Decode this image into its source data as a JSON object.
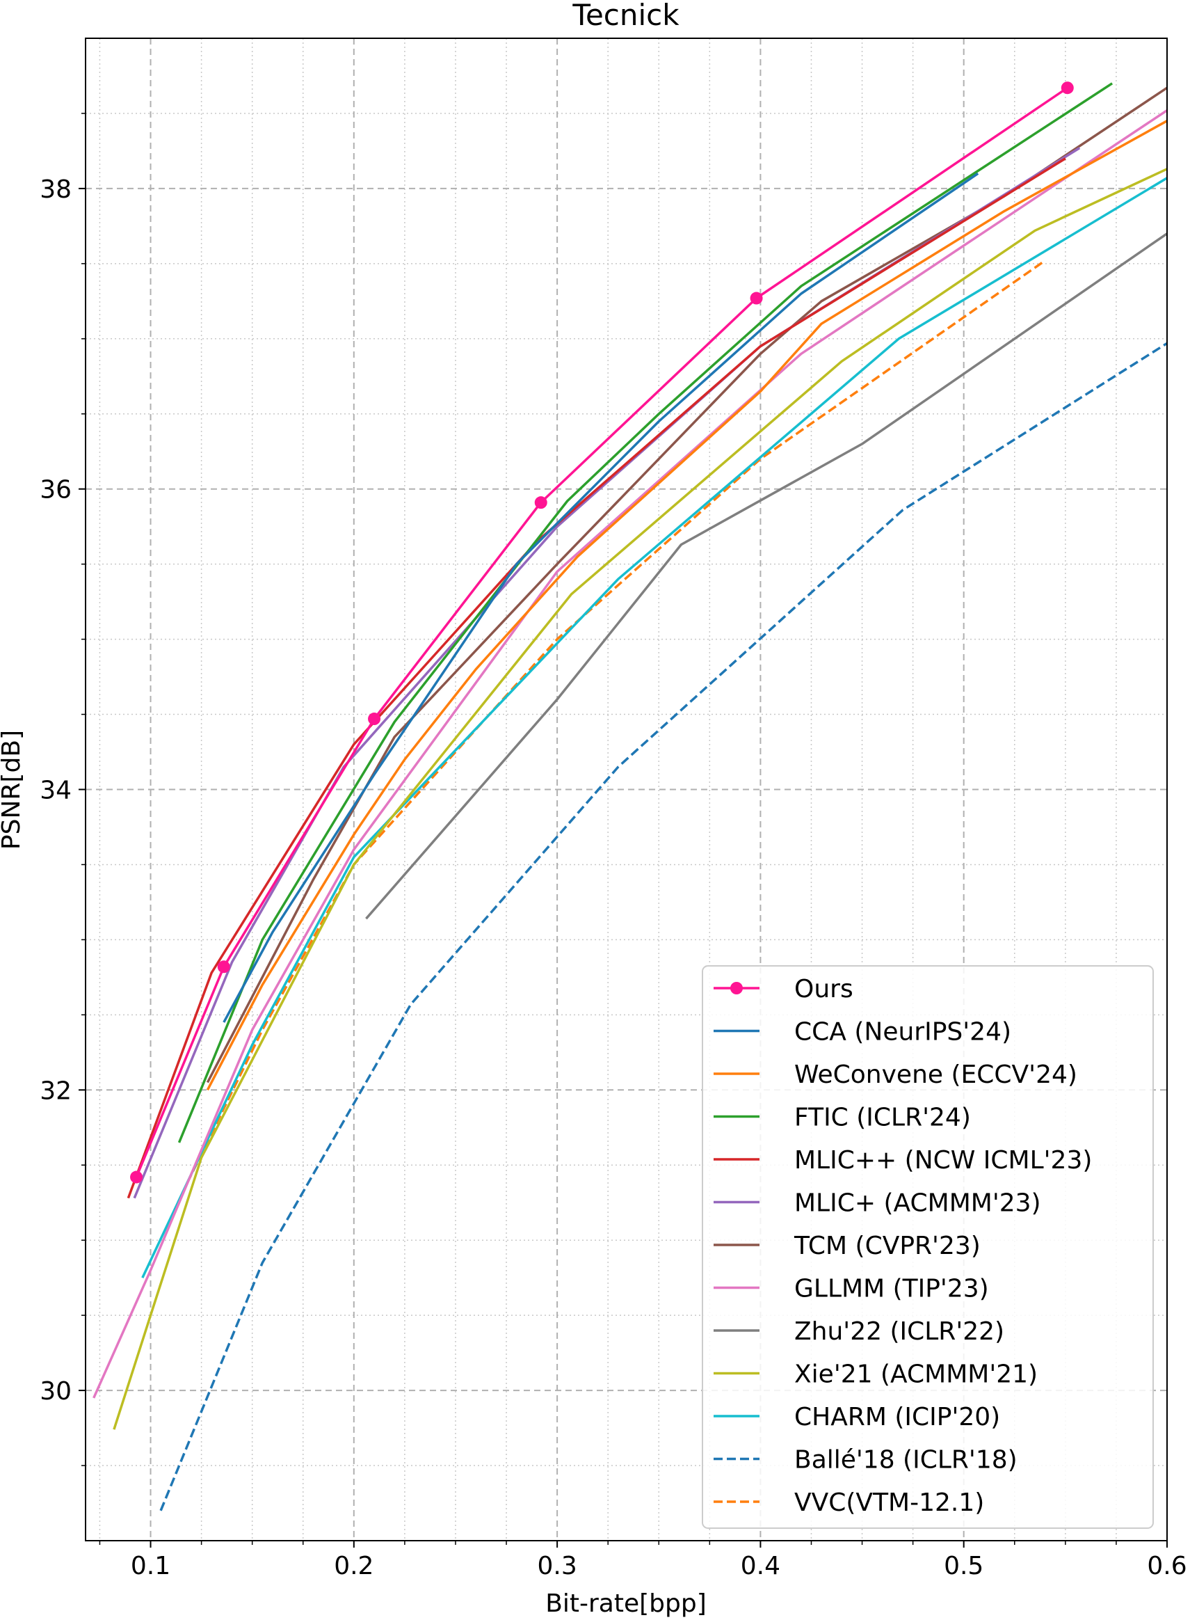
{
  "chart_data": {
    "type": "line",
    "title": "Tecnick",
    "xlabel": "Bit-rate[bpp]",
    "ylabel": "PSNR[dB]",
    "xlim": [
      0.068,
      0.6
    ],
    "ylim": [
      29.0,
      39.0
    ],
    "xticks": [
      {
        "value": 0.1,
        "label": "0.1"
      },
      {
        "value": 0.2,
        "label": "0.2"
      },
      {
        "value": 0.3,
        "label": "0.3"
      },
      {
        "value": 0.4,
        "label": "0.4"
      },
      {
        "value": 0.5,
        "label": "0.5"
      },
      {
        "value": 0.6,
        "label": "0.6"
      }
    ],
    "yticks": [
      {
        "value": 30,
        "label": "30"
      },
      {
        "value": 32,
        "label": "32"
      },
      {
        "value": 34,
        "label": "34"
      },
      {
        "value": 36,
        "label": "36"
      },
      {
        "value": 38,
        "label": "38"
      }
    ],
    "x_minor_ticks": [
      0.075,
      0.125,
      0.15,
      0.175,
      0.225,
      0.25,
      0.275,
      0.325,
      0.35,
      0.375,
      0.425,
      0.45,
      0.475,
      0.525,
      0.55,
      0.575
    ],
    "y_minor_ticks": [
      29.5,
      30.5,
      31.0,
      31.5,
      32.5,
      33.0,
      33.5,
      34.5,
      35.0,
      35.5,
      36.5,
      37.0,
      37.5,
      38.5
    ],
    "grid": true,
    "legend_position": "bottom-right",
    "series": [
      {
        "name": "Ours",
        "color": "#ff1493",
        "dash": "solid",
        "marker": true,
        "x": [
          0.093,
          0.136,
          0.21,
          0.292,
          0.398,
          0.551
        ],
        "y": [
          31.42,
          32.82,
          34.47,
          35.91,
          37.27,
          38.67
        ]
      },
      {
        "name": "CCA (NeurIPS'24)",
        "color": "#1f77b4",
        "dash": "solid",
        "marker": false,
        "x": [
          0.136,
          0.16,
          0.21,
          0.28,
          0.35,
          0.42,
          0.507
        ],
        "y": [
          32.45,
          33.05,
          34.1,
          35.5,
          36.45,
          37.3,
          38.1
        ]
      },
      {
        "name": "WeConvene (ECCV'24)",
        "color": "#ff7f0e",
        "dash": "solid",
        "marker": false,
        "x": [
          0.128,
          0.155,
          0.2,
          0.225,
          0.26,
          0.31,
          0.4,
          0.43,
          0.52,
          0.6
        ],
        "y": [
          32.0,
          32.7,
          33.7,
          34.2,
          34.8,
          35.55,
          36.65,
          37.1,
          37.85,
          38.45
        ]
      },
      {
        "name": "FTIC (ICLR'24)",
        "color": "#2ca02c",
        "dash": "solid",
        "marker": false,
        "x": [
          0.114,
          0.155,
          0.22,
          0.305,
          0.35,
          0.42,
          0.573
        ],
        "y": [
          31.65,
          33.0,
          34.45,
          35.92,
          36.5,
          37.35,
          38.7
        ]
      },
      {
        "name": "MLIC++ (NCW ICML'23)",
        "color": "#d62728",
        "dash": "solid",
        "marker": false,
        "x": [
          0.089,
          0.13,
          0.2,
          0.29,
          0.4,
          0.55
        ],
        "y": [
          31.28,
          32.78,
          34.3,
          35.65,
          36.95,
          38.2
        ]
      },
      {
        "name": "MLIC+ (ACMMM'23)",
        "color": "#9467bd",
        "dash": "solid",
        "marker": false,
        "x": [
          0.092,
          0.14,
          0.195,
          0.3,
          0.4,
          0.557
        ],
        "y": [
          31.28,
          32.85,
          34.15,
          35.75,
          36.95,
          38.27
        ]
      },
      {
        "name": "TCM (CVPR'23)",
        "color": "#8c564b",
        "dash": "solid",
        "marker": false,
        "x": [
          0.128,
          0.18,
          0.22,
          0.3,
          0.4,
          0.43,
          0.52,
          0.6
        ],
        "y": [
          32.05,
          33.4,
          34.35,
          35.5,
          36.9,
          37.25,
          37.95,
          38.67
        ]
      },
      {
        "name": "GLLMM (TIP'23)",
        "color": "#e377c2",
        "dash": "solid",
        "marker": false,
        "x": [
          0.072,
          0.1,
          0.15,
          0.2,
          0.3,
          0.42,
          0.6
        ],
        "y": [
          29.95,
          30.8,
          32.4,
          33.6,
          35.45,
          36.9,
          38.52
        ]
      },
      {
        "name": "Zhu'22 (ICLR'22)",
        "color": "#7f7f7f",
        "dash": "solid",
        "marker": false,
        "x": [
          0.206,
          0.3,
          0.361,
          0.45,
          0.6
        ],
        "y": [
          33.14,
          34.6,
          35.63,
          36.3,
          37.7
        ]
      },
      {
        "name": "Xie'21 (ACMMM'21)",
        "color": "#bcbd22",
        "dash": "solid",
        "marker": false,
        "x": [
          0.082,
          0.1,
          0.125,
          0.2,
          0.307,
          0.44,
          0.535,
          0.6
        ],
        "y": [
          29.74,
          30.5,
          31.55,
          33.5,
          35.3,
          36.85,
          37.72,
          38.13
        ]
      },
      {
        "name": "CHARM (ICIP'20)",
        "color": "#17becf",
        "dash": "solid",
        "marker": false,
        "x": [
          0.096,
          0.15,
          0.2,
          0.33,
          0.468,
          0.6
        ],
        "y": [
          30.75,
          32.3,
          33.55,
          35.4,
          37.0,
          38.07
        ]
      },
      {
        "name": "Ballé'18 (ICLR'18)",
        "color": "#1f77b4",
        "dash": "dashed",
        "marker": false,
        "x": [
          0.105,
          0.155,
          0.228,
          0.33,
          0.47,
          0.6
        ],
        "y": [
          29.2,
          30.85,
          32.57,
          34.15,
          35.86,
          36.97
        ]
      },
      {
        "name": "VVC(VTM-12.1)",
        "color": "#ff7f0e",
        "dash": "dashed",
        "marker": false,
        "x": [
          0.118,
          0.155,
          0.2,
          0.3,
          0.4,
          0.54
        ],
        "y": [
          31.38,
          32.4,
          33.5,
          35.0,
          36.2,
          37.52
        ]
      }
    ]
  }
}
